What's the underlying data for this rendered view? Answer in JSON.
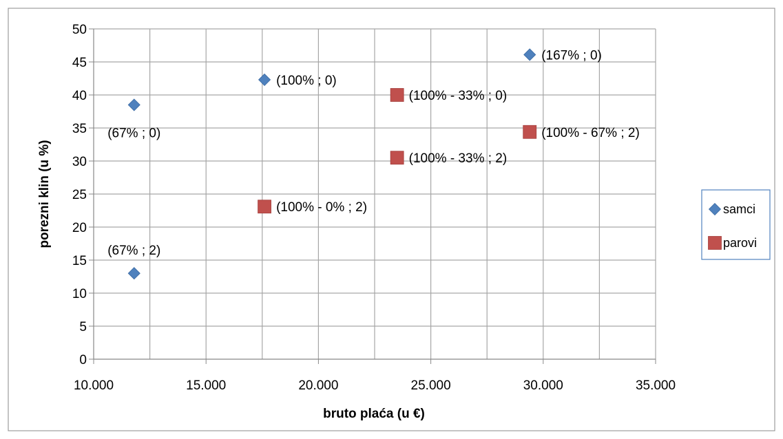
{
  "chart_data": {
    "type": "scatter",
    "xlabel": "bruto plaća (u €)",
    "ylabel": "porezni klin (u %)",
    "xlim": [
      10000,
      35000
    ],
    "ylim": [
      0,
      50
    ],
    "x_ticks": [
      10000,
      15000,
      20000,
      25000,
      30000,
      35000
    ],
    "x_tick_labels": [
      "10.000",
      "15.000",
      "20.000",
      "25.000",
      "30.000",
      "35.000"
    ],
    "y_ticks": [
      0,
      5,
      10,
      15,
      20,
      25,
      30,
      35,
      40,
      45,
      50
    ],
    "y_tick_labels": [
      "0",
      "5",
      "10",
      "15",
      "20",
      "25",
      "30",
      "35",
      "40",
      "45",
      "50"
    ],
    "grid": true,
    "legend_position": "right",
    "series": [
      {
        "name": "samci",
        "marker": "diamond",
        "color": "#4F81BD",
        "points": [
          {
            "x": 11800,
            "y": 38.5,
            "label": "(67% ; 0)",
            "label_pos": "below"
          },
          {
            "x": 11800,
            "y": 13.0,
            "label": "(67% ; 2)",
            "label_pos": "above"
          },
          {
            "x": 17600,
            "y": 42.3,
            "label": "(100% ; 0)",
            "label_pos": "right"
          },
          {
            "x": 29400,
            "y": 46.1,
            "label": "(167% ; 0)",
            "label_pos": "right"
          }
        ]
      },
      {
        "name": "parovi",
        "marker": "square",
        "color": "#C0504D",
        "points": [
          {
            "x": 17600,
            "y": 23.1,
            "label": "(100% - 0% ; 2)",
            "label_pos": "right"
          },
          {
            "x": 23500,
            "y": 40.0,
            "label": "(100% - 33% ; 0)",
            "label_pos": "right"
          },
          {
            "x": 23500,
            "y": 30.5,
            "label": "(100% - 33% ; 2)",
            "label_pos": "right"
          },
          {
            "x": 29400,
            "y": 34.4,
            "label": "(100% - 67% ; 2)",
            "label_pos": "right"
          }
        ]
      }
    ]
  }
}
